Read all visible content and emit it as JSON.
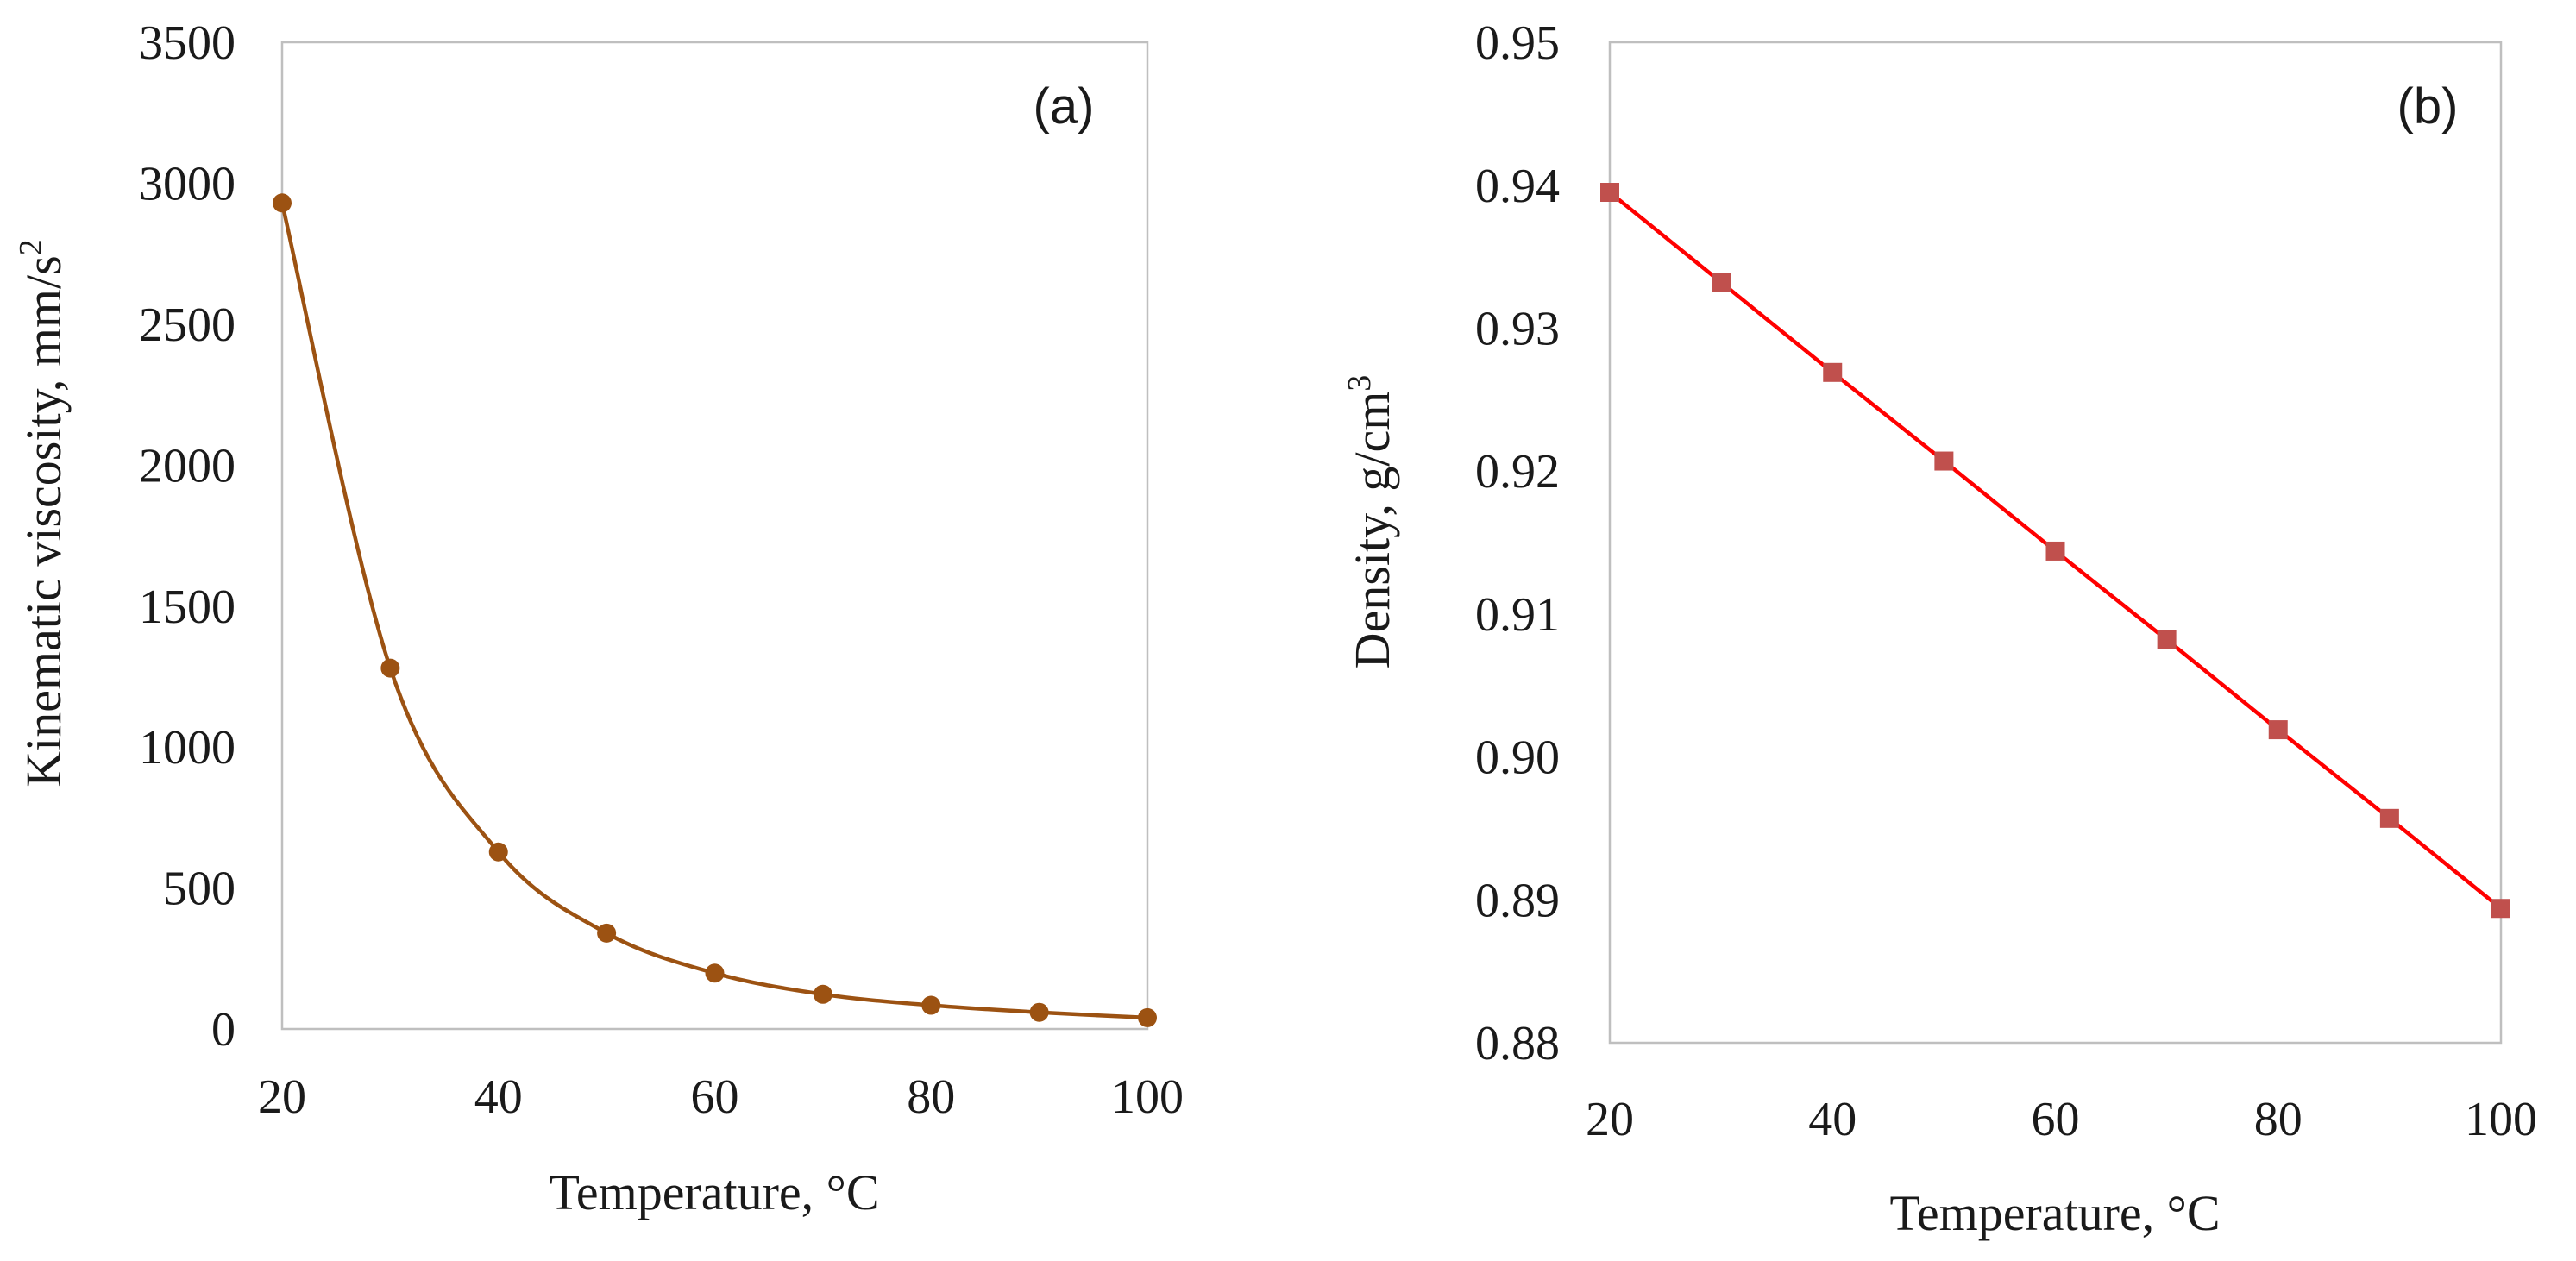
{
  "chart_data": [
    {
      "type": "line",
      "panel_label": "(a)",
      "title": "",
      "xlabel": "Temperature, °C",
      "ylabel": "Kinematic viscosity, mm/s",
      "ylabel_superscript": "2",
      "xlim": [
        20,
        100
      ],
      "ylim": [
        0,
        3500
      ],
      "xticks": [
        20,
        40,
        60,
        80,
        100
      ],
      "xtick_labels": [
        "20",
        "40",
        "60",
        "80",
        "100"
      ],
      "yticks": [
        0,
        500,
        1000,
        1500,
        2000,
        2500,
        3000,
        3500
      ],
      "ytick_labels": [
        "0",
        "500",
        "1000",
        "1500",
        "2000",
        "2500",
        "3000",
        "3500"
      ],
      "grid": false,
      "smooth": true,
      "marker": "circle",
      "color": "#9c5212",
      "series": [
        {
          "name": "Kinematic viscosity",
          "x": [
            20,
            30,
            40,
            50,
            60,
            70,
            80,
            90,
            100
          ],
          "y": [
            2930,
            1280,
            628,
            340,
            198,
            123,
            84,
            59,
            40
          ]
        }
      ]
    },
    {
      "type": "line",
      "panel_label": "(b)",
      "title": "",
      "xlabel": "Temperature, °C",
      "ylabel": "Density,  g/cm",
      "ylabel_superscript": "3",
      "xlim": [
        20,
        100
      ],
      "ylim": [
        0.88,
        0.95
      ],
      "xticks": [
        20,
        40,
        60,
        80,
        100
      ],
      "xtick_labels": [
        "20",
        "40",
        "60",
        "80",
        "100"
      ],
      "yticks": [
        0.88,
        0.89,
        0.9,
        0.91,
        0.92,
        0.93,
        0.94,
        0.95
      ],
      "ytick_labels": [
        "0.88",
        "0.89",
        "0.90",
        "0.91",
        "0.92",
        "0.93",
        "0.94",
        "0.95"
      ],
      "grid": false,
      "smooth": false,
      "marker": "square",
      "color": "#ff0000",
      "marker_color": "#c0504d",
      "series": [
        {
          "name": "Density",
          "x": [
            20,
            30,
            40,
            50,
            60,
            70,
            80,
            90,
            100
          ],
          "y": [
            0.9395,
            0.9332,
            0.9269,
            0.9207,
            0.9144,
            0.9082,
            0.9019,
            0.8957,
            0.8894
          ]
        }
      ]
    }
  ]
}
